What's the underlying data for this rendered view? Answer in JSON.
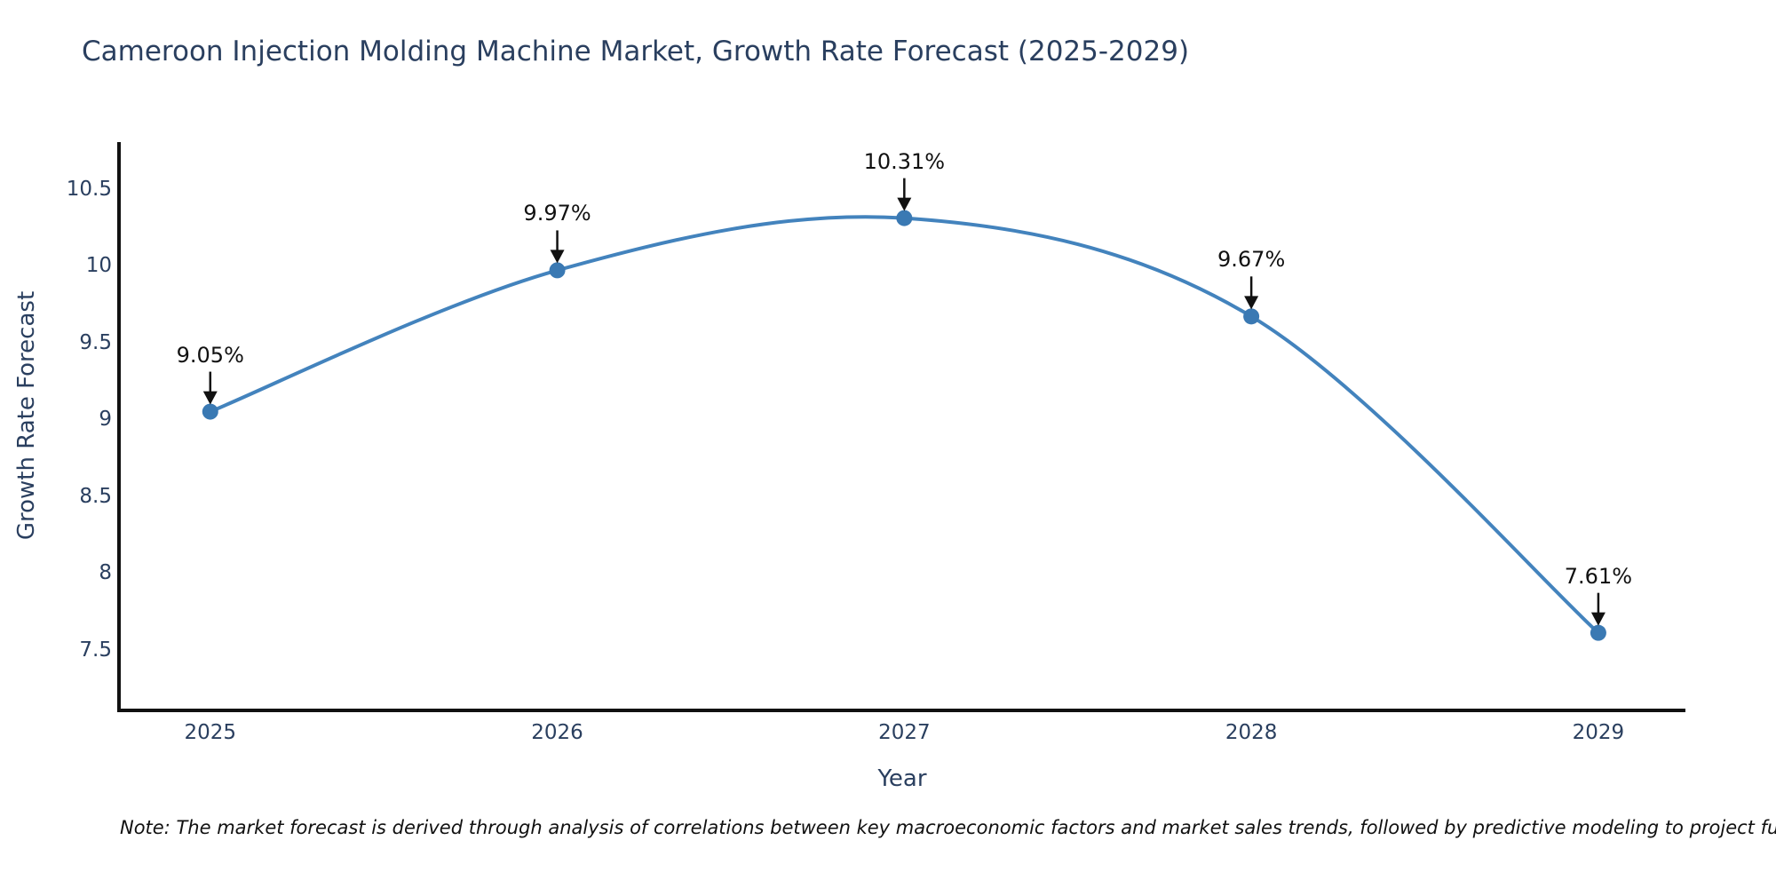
{
  "chart_data": {
    "type": "line",
    "title": "Cameroon Injection Molding Machine Market, Growth Rate Forecast (2025-2029)",
    "xlabel": "Year",
    "ylabel": "Growth Rate Forecast",
    "x": [
      2025,
      2026,
      2027,
      2028,
      2029
    ],
    "values": [
      9.05,
      9.97,
      10.31,
      9.67,
      7.61
    ],
    "point_labels": [
      "9.05%",
      "9.97%",
      "10.31%",
      "9.67%",
      "7.61%"
    ],
    "xtick_labels": [
      "2025",
      "2026",
      "2027",
      "2028",
      "2029"
    ],
    "ytick_values": [
      7.5,
      8,
      8.5,
      9,
      9.5,
      10,
      10.5
    ],
    "ytick_labels": [
      "7.5",
      "8",
      "8.5",
      "9",
      "9.5",
      "10",
      "10.5"
    ],
    "xlim": [
      2024.737,
      2029.251
    ],
    "ylim": [
      7.105,
      10.805
    ],
    "grid": false,
    "legend": false,
    "line_color": "#4383bd",
    "marker_color": "#3a79b3",
    "axis_color": "#111111",
    "label_color": "#2a3f5f",
    "annotation_color": "#111111"
  },
  "footnote": "Note: The market forecast is derived through analysis of correlations between key macroeconomic factors and market sales trends, followed by predictive modeling to project future sal"
}
